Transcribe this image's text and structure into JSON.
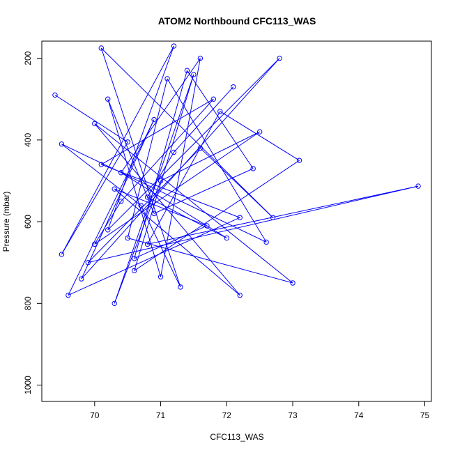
{
  "chart_data": {
    "type": "line",
    "title": "ATOM2 Northbound CFC113_WAS",
    "xlabel": "CFC113_WAS",
    "ylabel": "Pressure (mbar)",
    "xlim": [
      69.2,
      75.1
    ],
    "ylim": [
      1040,
      158
    ],
    "y_reversed": true,
    "grid": false,
    "x_ticks": [
      70,
      71,
      72,
      73,
      74,
      75
    ],
    "x_tick_labels": [
      "70",
      "71",
      "72",
      "73",
      "74",
      "75"
    ],
    "y_ticks": [
      200,
      400,
      600,
      800,
      1000
    ],
    "y_tick_labels": [
      "200",
      "400",
      "600",
      "800",
      "1000"
    ],
    "series": [
      {
        "color": "#0000ff",
        "marker": "open-circle",
        "connected": true,
        "x": [
          69.4,
          70.5,
          69.5,
          71.2,
          70.2,
          72.8,
          69.8,
          70.9,
          69.6,
          72.2,
          70.1,
          71.8,
          70.4,
          70.0,
          72.5,
          71.0,
          70.3,
          71.5,
          70.6,
          73.1,
          71.9,
          70.8,
          74.9,
          69.9,
          71.6,
          72.7,
          70.1,
          71.3,
          70.7,
          69.5,
          72.6,
          71.1,
          70.5,
          73.0,
          70.0,
          72.2,
          70.3,
          71.7,
          70.6,
          71.4,
          72.4,
          70.9,
          70.2,
          71.0,
          71.6,
          70.4,
          72.0,
          70.8,
          71.2,
          72.1
        ],
        "y": [
          290,
          405,
          680,
          170,
          620,
          200,
          740,
          350,
          780,
          590,
          460,
          300,
          550,
          655,
          380,
          500,
          800,
          240,
          720,
          450,
          330,
          655,
          513,
          700,
          420,
          590,
          175,
          760,
          560,
          410,
          650,
          250,
          640,
          750,
          360,
          780,
          520,
          610,
          690,
          230,
          470,
          580,
          300,
          735,
          200,
          480,
          640,
          540,
          430,
          270
        ]
      }
    ]
  }
}
